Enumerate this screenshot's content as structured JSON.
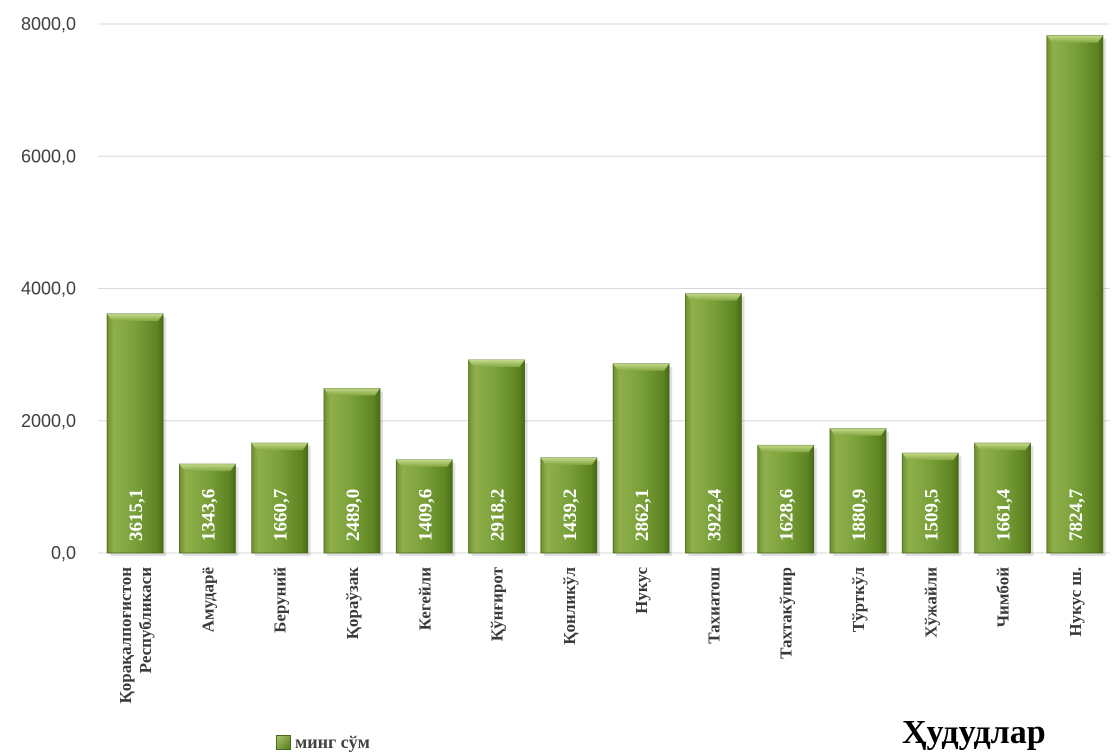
{
  "chart_data": {
    "type": "bar",
    "categories": [
      [
        "Қорақалпоғистон",
        "Республикаси"
      ],
      [
        "Амударё"
      ],
      [
        "Беруний"
      ],
      [
        "Қораўзак"
      ],
      [
        "Кегейли"
      ],
      [
        "Қўнғирот"
      ],
      [
        "Қонликўл"
      ],
      [
        "Нукус"
      ],
      [
        "Тахиатош"
      ],
      [
        "Тахтакўпир"
      ],
      [
        "Тўрткўл"
      ],
      [
        "Хўжайли"
      ],
      [
        "Чимбой"
      ],
      [
        "Нукус ш."
      ]
    ],
    "series": [
      {
        "name": "минг сўм",
        "values": [
          3615.1,
          1343.6,
          1660.7,
          2489.0,
          1409.6,
          2918.2,
          1439.2,
          2862.1,
          3922.4,
          1628.6,
          1880.9,
          1509.5,
          1661.4,
          7824.7
        ],
        "labels": [
          "3615,1",
          "1343,6",
          "1660,7",
          "2489,0",
          "1409,6",
          "2918,2",
          "1439,2",
          "2862,1",
          "3922,4",
          "1628,6",
          "1880,9",
          "1509,5",
          "1661,4",
          "7824,7"
        ]
      }
    ],
    "ylim": [
      0,
      8000
    ],
    "yticks": [
      0,
      2000,
      4000,
      6000,
      8000
    ],
    "ytick_labels": [
      "0,0",
      "2000,0",
      "4000,0",
      "6000,0",
      "8000,0"
    ],
    "xlabel": "Ҳудудлар",
    "ylabel": "",
    "grid": true,
    "legend_position": "bottom"
  },
  "colors": {
    "bar_light": "#a4c061",
    "bar_dark": "#587d1e",
    "grid": "#d9d9d9"
  }
}
